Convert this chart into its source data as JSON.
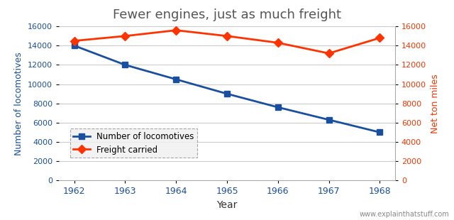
{
  "title": "Fewer engines, just as much freight",
  "years": [
    1962,
    1963,
    1964,
    1965,
    1966,
    1967,
    1968
  ],
  "locomotives": [
    14000,
    12000,
    10500,
    9000,
    7600,
    6300,
    5000
  ],
  "freight": [
    14500,
    15000,
    15600,
    15000,
    14300,
    13200,
    14800
  ],
  "loco_color": "#1a4f9f",
  "freight_color": "#ff3300",
  "title_color": "#555555",
  "left_axis_color": "#1a4f9f",
  "right_axis_color": "#ff3300",
  "xlabel": "Year",
  "ylabel_left": "Number of locomotives",
  "ylabel_right": "Net ton miles",
  "ylim_left": [
    0,
    16000
  ],
  "ylim_right": [
    0,
    16000
  ],
  "yticks_left": [
    0,
    2000,
    4000,
    6000,
    8000,
    10000,
    12000,
    14000,
    16000
  ],
  "yticks_right": [
    0,
    2000,
    4000,
    6000,
    8000,
    10000,
    12000,
    14000,
    16000
  ],
  "legend_loco": "Number of locomotives",
  "legend_freight": "Freight carried",
  "watermark": "www.explainthatstuff.com",
  "bg_color": "#ffffff",
  "plot_bg_color": "#ffffff",
  "grid_color": "#cccccc"
}
